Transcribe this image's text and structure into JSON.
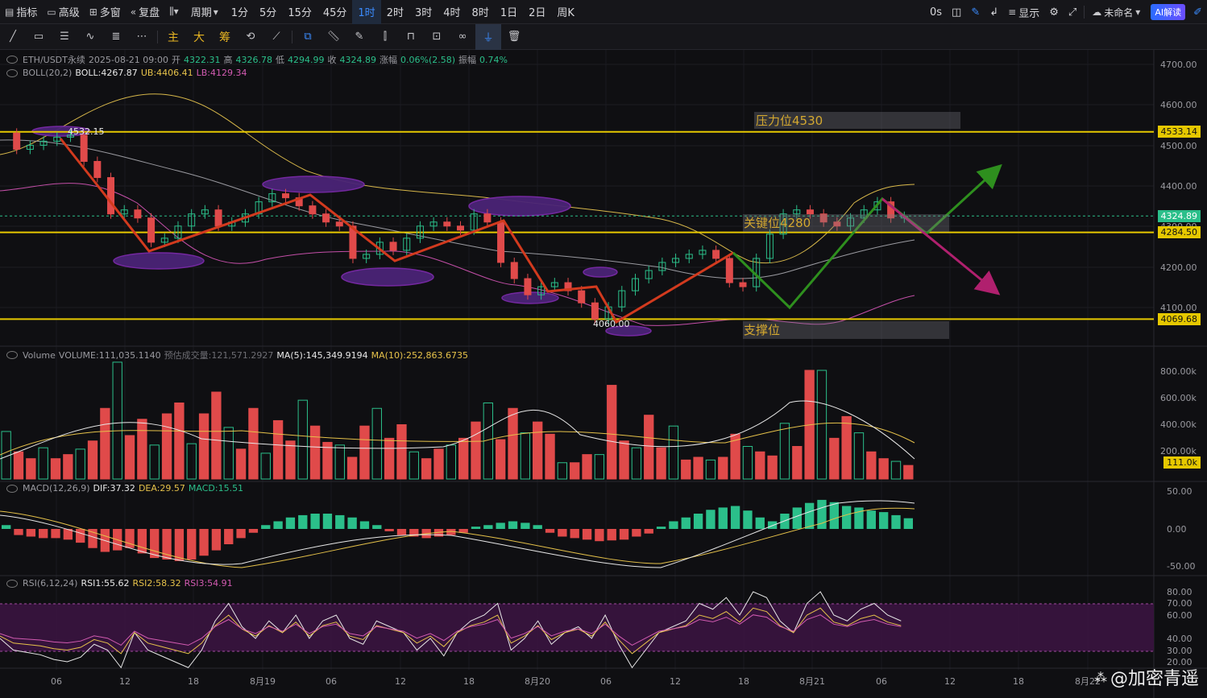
{
  "toolbar": {
    "items": [
      {
        "icon": "indicator-icon",
        "label": "指标"
      },
      {
        "icon": "advanced-icon",
        "label": "高级"
      },
      {
        "icon": "multi-window-icon",
        "label": "多窗"
      },
      {
        "icon": "replay-icon",
        "label": "复盘"
      },
      {
        "icon": "candle-type-icon",
        "label": ""
      }
    ],
    "period_label": "周期",
    "timeframes": [
      "1分",
      "5分",
      "15分",
      "45分",
      "1时",
      "2时",
      "3时",
      "4时",
      "8时",
      "1日",
      "2日",
      "周K"
    ],
    "active_timeframe": "1时",
    "countdown": "0s",
    "display_label": "显示",
    "user_label": "未命名",
    "ai_label": "AI解读"
  },
  "drawing_tools": {
    "gold_labels": [
      "主",
      "大",
      "筹"
    ]
  },
  "main_panel": {
    "symbol": "ETH/USDT永续",
    "datetime": "2025-08-21 09:00",
    "open_label": "开",
    "open": "4322.31",
    "high_label": "高",
    "high": "4326.78",
    "low_label": "低",
    "low": "4294.99",
    "close_label": "收",
    "close": "4324.89",
    "change_label": "涨幅",
    "change": "0.06%(2.58)",
    "amp_label": "振幅",
    "amp": "0.74%",
    "boll_name": "BOLL(20,2)",
    "boll_label": "BOLL:4267.87",
    "ub_label": "UB:4406.41",
    "lb_label": "LB:4129.34",
    "annotations": {
      "resistance": "压力位4530",
      "key_level": "关键位4280",
      "support": "支撑位",
      "high_marker": "4532.15",
      "low_marker": "4060.00"
    },
    "price_axis": [
      "4700.00",
      "4600.00",
      "4500.00",
      "4400.00",
      "4300.00",
      "4200.00",
      "4100.00"
    ],
    "tags": {
      "resistance": "4533.14",
      "current": "4324.89",
      "key": "4284.50",
      "support": "4069.68"
    }
  },
  "volume_panel": {
    "name": "Volume",
    "volume_label": "VOLUME:111,035.1140",
    "est_label": "预估成交量:121,571.2927",
    "ma5_label": "MA(5):145,349.9194",
    "ma10_label": "MA(10):252,863.6735",
    "axis": [
      "800.00k",
      "600.00k",
      "400.00k",
      "200.00k"
    ],
    "current_tag": "111.0k"
  },
  "macd_panel": {
    "name": "MACD(12,26,9)",
    "dif_label": "DIF:37.32",
    "dea_label": "DEA:29.57",
    "macd_label": "MACD:15.51",
    "axis": [
      "50.00",
      "0.00",
      "-50.00"
    ]
  },
  "rsi_panel": {
    "name": "RSI(6,12,24)",
    "rsi1_label": "RSI1:55.62",
    "rsi2_label": "RSI2:58.32",
    "rsi3_label": "RSI3:54.91",
    "axis": [
      "80.00",
      "70.00",
      "60.00",
      "40.00",
      "30.00",
      "20.00"
    ]
  },
  "time_axis": [
    "06",
    "12",
    "18",
    "8月19",
    "06",
    "12",
    "18",
    "8月20",
    "06",
    "12",
    "18",
    "8月21",
    "06",
    "12",
    "18",
    "8月22"
  ],
  "watermark": "@加密青遥",
  "colors": {
    "up": "#2bbf8a",
    "down": "#e04a4a",
    "level_line": "#e6c800",
    "boll_mid": "#9a9aa0",
    "boll_ub": "#d8b84a",
    "boll_lb": "#c44fa8",
    "trend_red": "#d23a1e",
    "trend_green": "#2e8f1e",
    "arrow_purple": "#b0206e",
    "accent": "#3b8cff"
  }
}
